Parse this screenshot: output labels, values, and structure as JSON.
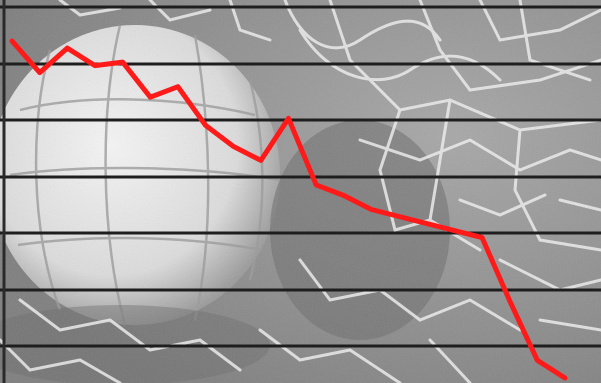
{
  "colors": {
    "line": "#ff1a1a",
    "gridline": "#1e1e1e",
    "background_base": "#8c8c8c",
    "ball": "#e6e6e6",
    "net": "#efefef"
  },
  "background": {
    "motif": "soccer-ball-in-net",
    "style": "grayscale-photo"
  },
  "chart_data": {
    "type": "line",
    "title": "",
    "xlabel": "",
    "ylabel": "",
    "grid": true,
    "legend": "none",
    "axes_labeled": false,
    "xlim": [
      0,
      20
    ],
    "ylim": [
      0,
      100
    ],
    "series": [
      {
        "x": [
          0,
          1,
          2,
          3,
          4,
          5,
          6,
          7,
          8,
          9,
          10,
          11,
          12,
          13,
          14,
          15,
          16,
          17,
          18,
          19,
          20
        ],
        "values": [
          96,
          87,
          94,
          89,
          90,
          80,
          83,
          72,
          66,
          62,
          74,
          55,
          52,
          48,
          46,
          44,
          42,
          40,
          22,
          5,
          0
        ]
      }
    ]
  }
}
